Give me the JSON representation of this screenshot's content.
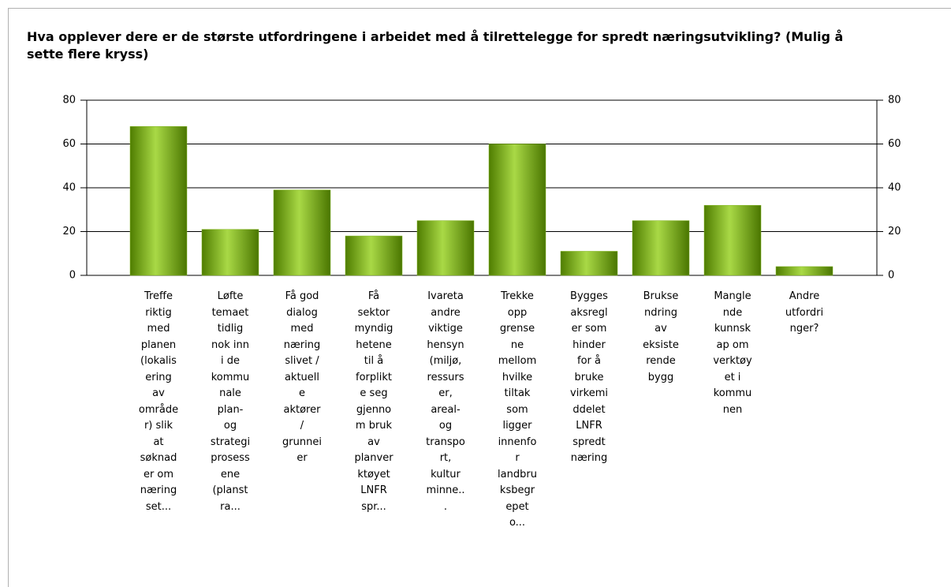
{
  "chart_data": {
    "type": "bar",
    "title": "Hva opplever dere er de største utfordringene i arbeidet med å tilrettelegge for spredt næringsutvikling? (Mulig å sette flere kryss)",
    "categories": [
      "Treffe\nriktig\nmed\nplanen\n(lokalis\nering\nav\nområde\nr) slik\nat\nsøknad\ner om\nnæring\nset...",
      "Løfte\ntemaet\ntidlig\nnok inn\ni de\nkommu\nnale\nplan-\nog\nstrategi\nprosess\nene\n(planst\nra...",
      "Få god\ndialog\nmed\nnæring\nslivet /\naktuell\ne\naktører\n/\ngrunnei\ner",
      "Få\nsektor\nmyndig\nhetene\ntil å\nforplikt\ne seg\ngjenno\nm bruk\nav\nplanver\nktøyet\nLNFR\nspr...",
      "Ivareta\nandre\nviktige\nhensyn\n(miljø,\nressurs\ner,\nareal-\nog\ntranspo\nrt,\nkultur\nminne..\n.",
      "Trekke\nopp\ngrense\nne\nmellom\nhvilke\ntiltak\nsom\nligger\ninnenfo\nr\nlandbru\nksbegr\nepet\no...",
      "Bygges\naksregl\ner som\nhinder\nfor å\nbruke\nvirkemi\nddelet\nLNFR\nspredt\nnæring",
      "Brukse\nndring\nav\neksiste\nrende\nbygg",
      "Mangle\nnde\nkunnsk\nap om\nverktøy\net i\nkommu\nnen",
      "Andre\nutfordri\nnger?"
    ],
    "values": [
      68,
      21,
      39,
      18,
      25,
      60,
      11,
      25,
      32,
      4
    ],
    "color": "#7fb21a",
    "ylim": [
      0,
      80
    ],
    "yticks": [
      0,
      20,
      40,
      60,
      80
    ],
    "grid": true
  }
}
